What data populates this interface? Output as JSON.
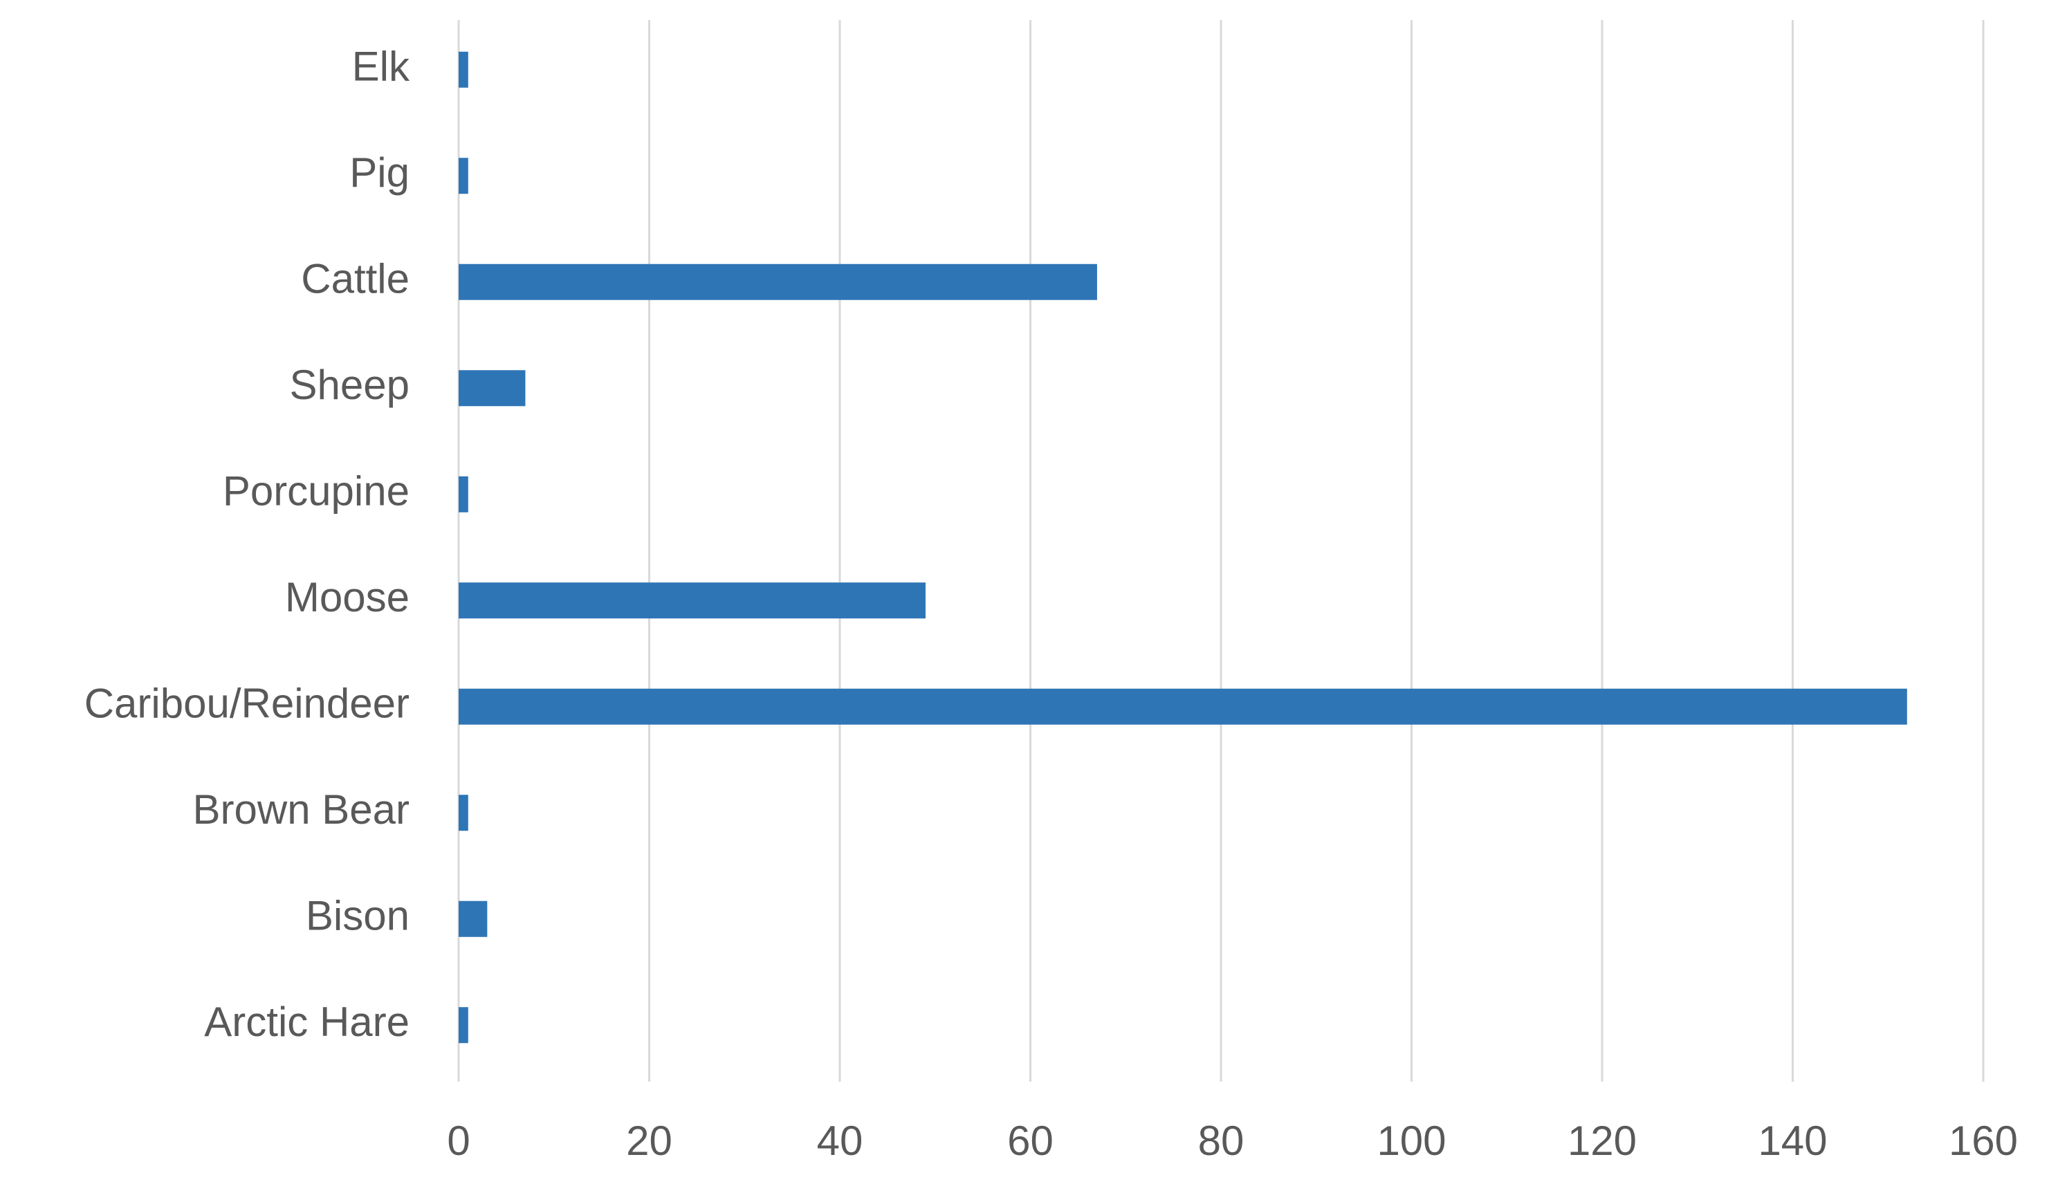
{
  "chart_data": {
    "type": "hbar",
    "categories": [
      "Elk",
      "Pig",
      "Cattle",
      "Sheep",
      "Porcupine",
      "Moose",
      "Caribou/Reindeer",
      "Brown Bear",
      "Bison",
      "Arctic Hare"
    ],
    "values": [
      1,
      1,
      67,
      7,
      1,
      49,
      152,
      1,
      3,
      1
    ],
    "color": "#2e75b6",
    "xlim": [
      0,
      160
    ],
    "xticks": [
      0,
      20,
      40,
      60,
      80,
      100,
      120,
      140,
      160
    ],
    "grid": true
  }
}
